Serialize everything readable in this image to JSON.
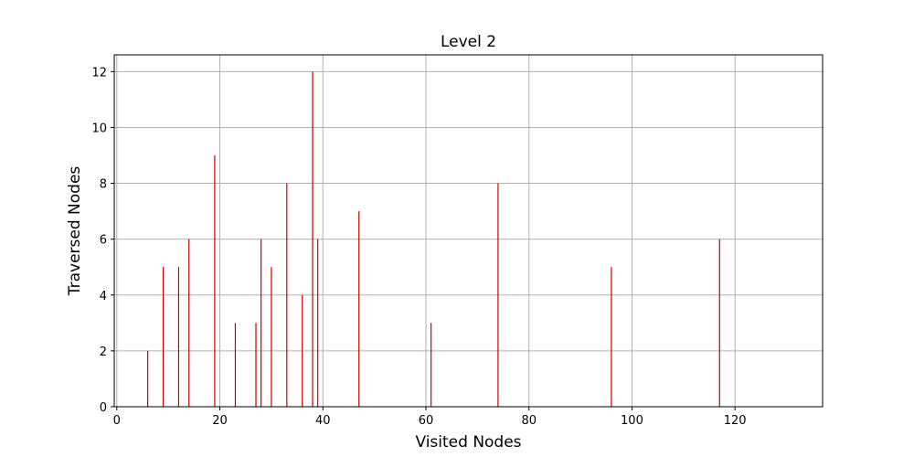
{
  "chart_data": {
    "type": "bar",
    "title": "Level 2",
    "xlabel": "Visited Nodes",
    "ylabel": "Traversed Nodes",
    "xlim": [
      -0.5,
      137
    ],
    "ylim": [
      0,
      12.6
    ],
    "xticks": [
      0,
      20,
      40,
      60,
      80,
      100,
      120
    ],
    "yticks": [
      0,
      2,
      4,
      6,
      8,
      10,
      12
    ],
    "grid": true,
    "bar_color": "#cc0000",
    "x": [
      6,
      9,
      12,
      14,
      19,
      23,
      27,
      28,
      30,
      33,
      36,
      38,
      39,
      47,
      61,
      74,
      96,
      117
    ],
    "values": [
      2,
      5,
      5,
      6,
      9,
      3,
      3,
      6,
      5,
      8,
      4,
      12,
      6,
      7,
      3,
      8,
      5,
      6
    ]
  }
}
